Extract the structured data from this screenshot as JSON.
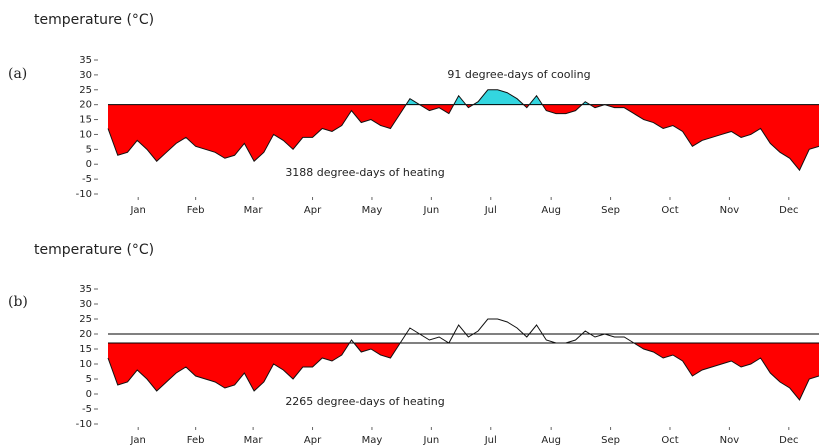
{
  "chart_data": [
    {
      "type": "degree-days",
      "label": "(a)",
      "title": "temperature (°C)",
      "x": [
        0,
        5,
        10,
        15,
        20,
        25,
        30,
        35,
        40,
        45,
        50,
        55,
        60,
        65,
        70,
        75,
        80,
        85,
        90,
        95,
        100,
        105,
        110,
        115,
        120,
        125,
        130,
        135,
        140,
        145,
        150,
        155,
        160,
        165,
        170,
        175,
        180,
        185,
        190,
        195,
        200,
        205,
        210,
        215,
        220,
        225,
        230,
        235,
        240,
        245,
        250,
        255,
        260,
        265,
        270,
        275,
        280,
        285,
        290,
        295,
        300,
        305,
        310,
        315,
        320,
        325,
        330,
        335,
        340,
        345,
        350,
        355,
        360,
        365
      ],
      "values": [
        12,
        3,
        4,
        8,
        5,
        1,
        4,
        7,
        9,
        6,
        5,
        4,
        2,
        3,
        7,
        1,
        4,
        10,
        8,
        5,
        9,
        9,
        12,
        11,
        13,
        18,
        14,
        15,
        13,
        12,
        17,
        22,
        20,
        18,
        19,
        17,
        23,
        19,
        21,
        25,
        25,
        24,
        22,
        19,
        23,
        18,
        17,
        17,
        18,
        21,
        19,
        20,
        19,
        19,
        17,
        15,
        14,
        12,
        13,
        11,
        6,
        8,
        9,
        10,
        11,
        9,
        10,
        12,
        7,
        4,
        2,
        -2,
        5,
        6
      ],
      "base": 20,
      "heating_color": "#ff0000",
      "cooling_color": "#33d6e0",
      "annotations": [
        "91 degree-days of cooling",
        "3188 degree-days of heating"
      ],
      "xlim": [
        0,
        365
      ],
      "xticks": [
        {
          "value": 15.5,
          "label": "Jan"
        },
        {
          "value": 45,
          "label": "Feb"
        },
        {
          "value": 74.5,
          "label": "Mar"
        },
        {
          "value": 105,
          "label": "Apr"
        },
        {
          "value": 135.5,
          "label": "May"
        },
        {
          "value": 166,
          "label": "Jun"
        },
        {
          "value": 196.5,
          "label": "Jul"
        },
        {
          "value": 227.5,
          "label": "Aug"
        },
        {
          "value": 258,
          "label": "Sep"
        },
        {
          "value": 288.5,
          "label": "Oct"
        },
        {
          "value": 319,
          "label": "Nov"
        },
        {
          "value": 349.5,
          "label": "Dec"
        }
      ],
      "ylim": [
        -10,
        35
      ],
      "yticks": [
        -10,
        -5,
        0,
        5,
        10,
        15,
        20,
        25,
        30,
        35
      ]
    },
    {
      "type": "degree-days",
      "label": "(b)",
      "title": "temperature (°C)",
      "x": [
        0,
        5,
        10,
        15,
        20,
        25,
        30,
        35,
        40,
        45,
        50,
        55,
        60,
        65,
        70,
        75,
        80,
        85,
        90,
        95,
        100,
        105,
        110,
        115,
        120,
        125,
        130,
        135,
        140,
        145,
        150,
        155,
        160,
        165,
        170,
        175,
        180,
        185,
        190,
        195,
        200,
        205,
        210,
        215,
        220,
        225,
        230,
        235,
        240,
        245,
        250,
        255,
        260,
        265,
        270,
        275,
        280,
        285,
        290,
        295,
        300,
        305,
        310,
        315,
        320,
        325,
        330,
        335,
        340,
        345,
        350,
        355,
        360,
        365
      ],
      "values": [
        12,
        3,
        4,
        8,
        5,
        1,
        4,
        7,
        9,
        6,
        5,
        4,
        2,
        3,
        7,
        1,
        4,
        10,
        8,
        5,
        9,
        9,
        12,
        11,
        13,
        18,
        14,
        15,
        13,
        12,
        17,
        22,
        20,
        18,
        19,
        17,
        23,
        19,
        21,
        25,
        25,
        24,
        22,
        19,
        23,
        18,
        17,
        17,
        18,
        21,
        19,
        20,
        19,
        19,
        17,
        15,
        14,
        12,
        13,
        11,
        6,
        8,
        9,
        10,
        11,
        9,
        10,
        12,
        7,
        4,
        2,
        -2,
        5,
        6
      ],
      "base": 17,
      "reference_line": 20,
      "heating_color": "#ff0000",
      "annotations": [
        "2265 degree-days of heating"
      ],
      "xlim": [
        0,
        365
      ],
      "xticks": [
        {
          "value": 15.5,
          "label": "Jan"
        },
        {
          "value": 45,
          "label": "Feb"
        },
        {
          "value": 74.5,
          "label": "Mar"
        },
        {
          "value": 105,
          "label": "Apr"
        },
        {
          "value": 135.5,
          "label": "May"
        },
        {
          "value": 166,
          "label": "Jun"
        },
        {
          "value": 196.5,
          "label": "Jul"
        },
        {
          "value": 227.5,
          "label": "Aug"
        },
        {
          "value": 258,
          "label": "Sep"
        },
        {
          "value": 288.5,
          "label": "Oct"
        },
        {
          "value": 319,
          "label": "Nov"
        },
        {
          "value": 349.5,
          "label": "Dec"
        }
      ],
      "ylim": [
        -10,
        35
      ],
      "yticks": [
        -10,
        -5,
        0,
        5,
        10,
        15,
        20,
        25,
        30,
        35
      ]
    }
  ]
}
